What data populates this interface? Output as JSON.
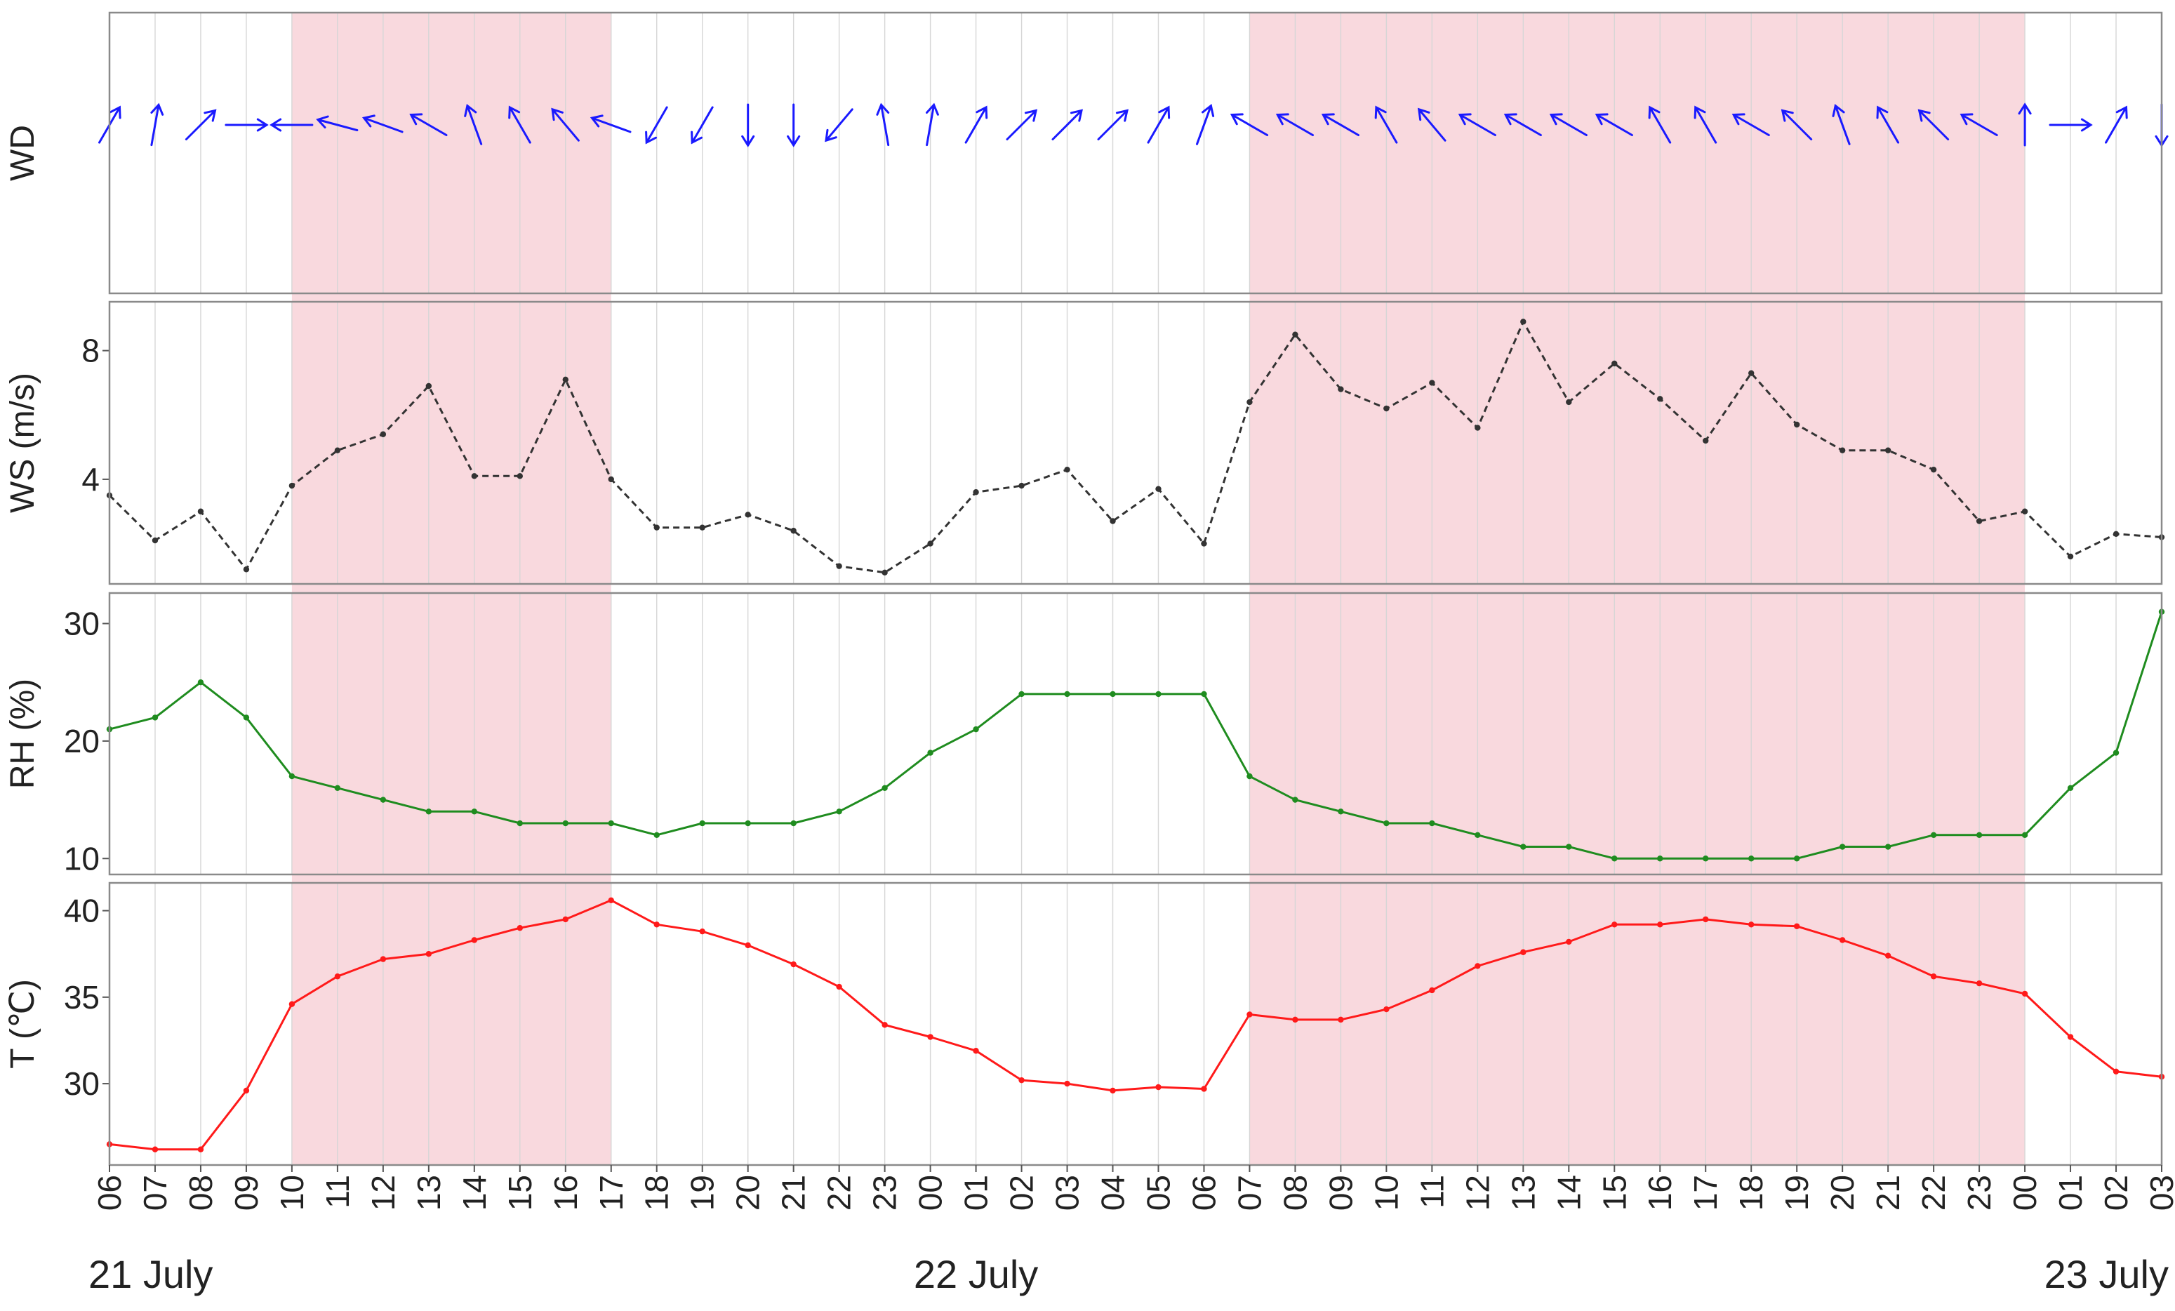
{
  "chart_data": {
    "type": "line",
    "x_ticks": [
      "06",
      "07",
      "08",
      "09",
      "10",
      "11",
      "12",
      "13",
      "14",
      "15",
      "16",
      "17",
      "18",
      "19",
      "20",
      "21",
      "22",
      "23",
      "00",
      "01",
      "02",
      "03",
      "04",
      "05",
      "06",
      "07",
      "08",
      "09",
      "10",
      "11",
      "12",
      "13",
      "14",
      "15",
      "16",
      "17",
      "18",
      "19",
      "20",
      "21",
      "22",
      "23",
      "00",
      "01",
      "02",
      "03"
    ],
    "date_labels": [
      {
        "text": "21 July",
        "index": 0,
        "align": "start"
      },
      {
        "text": "22 July",
        "index": 19,
        "align": "middle"
      },
      {
        "text": "23 July",
        "index": 45,
        "align": "end"
      }
    ],
    "shaded_index_ranges": [
      [
        4,
        11
      ],
      [
        25,
        42
      ]
    ],
    "shade_color": "#f9d9de",
    "panels": [
      {
        "key": "wd",
        "ylabel": "WD",
        "kind": "vector",
        "color": "#1a1aff",
        "wind_direction_deg": [
          210,
          190,
          225,
          270,
          90,
          105,
          110,
          120,
          160,
          150,
          140,
          110,
          30,
          30,
          0,
          0,
          40,
          170,
          190,
          210,
          225,
          225,
          225,
          210,
          200,
          120,
          120,
          120,
          150,
          140,
          120,
          120,
          120,
          120,
          150,
          150,
          120,
          135,
          160,
          150,
          135,
          120,
          180,
          270,
          210,
          0
        ]
      },
      {
        "key": "ws",
        "ylabel": "WS (m/s)",
        "kind": "line",
        "style": "dashed",
        "color": "#333333",
        "ylim": [
          0.9,
          9.3
        ],
        "yticks": [
          4,
          8
        ],
        "values": [
          3.5,
          2.1,
          3.0,
          1.2,
          3.8,
          4.9,
          5.4,
          6.9,
          4.1,
          4.1,
          7.1,
          4.0,
          2.5,
          2.5,
          2.9,
          2.4,
          1.3,
          1.1,
          2.0,
          3.6,
          3.8,
          4.3,
          2.7,
          3.7,
          2.0,
          6.4,
          8.5,
          6.8,
          6.2,
          7.0,
          5.6,
          8.9,
          6.4,
          7.6,
          6.5,
          5.2,
          7.3,
          5.7,
          4.9,
          4.9,
          4.3,
          2.7,
          3.0,
          1.6,
          2.3,
          2.2
        ]
      },
      {
        "key": "rh",
        "ylabel": "RH (%)",
        "kind": "line",
        "style": "solid",
        "color": "#1f8c1f",
        "ylim": [
          9.0,
          32.0
        ],
        "yticks": [
          10,
          20,
          30
        ],
        "values": [
          21,
          22,
          25,
          22,
          17,
          16,
          15,
          14,
          14,
          13,
          13,
          13,
          12,
          13,
          13,
          13,
          14,
          16,
          19,
          21,
          24,
          24,
          24,
          24,
          24,
          17,
          15,
          14,
          13,
          13,
          12,
          11,
          11,
          10,
          10,
          10,
          10,
          10,
          11,
          11,
          12,
          12,
          12,
          16,
          19,
          31
        ]
      },
      {
        "key": "t",
        "ylabel": "T (℃)",
        "kind": "line",
        "style": "solid",
        "color": "#ff1a1a",
        "ylim": [
          25.5,
          41.2
        ],
        "yticks": [
          30,
          35,
          40
        ],
        "values": [
          26.5,
          26.2,
          26.2,
          29.6,
          34.6,
          36.2,
          37.2,
          37.5,
          38.3,
          39.0,
          39.5,
          40.6,
          39.2,
          38.8,
          38.0,
          36.9,
          35.6,
          33.4,
          32.7,
          31.9,
          30.2,
          30.0,
          29.6,
          29.8,
          29.7,
          34.0,
          33.7,
          33.7,
          34.3,
          35.4,
          36.8,
          37.6,
          38.2,
          39.2,
          39.2,
          39.5,
          39.2,
          39.1,
          38.3,
          37.4,
          36.2,
          35.8,
          35.2,
          32.7,
          30.7,
          30.4
        ]
      }
    ]
  }
}
